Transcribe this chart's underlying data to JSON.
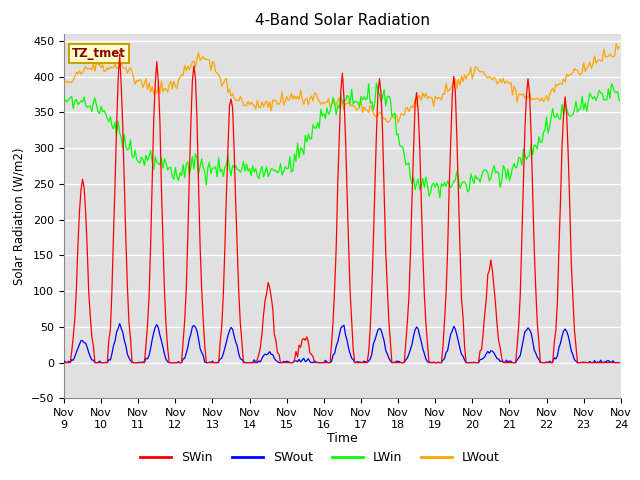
{
  "title": "4-Band Solar Radiation",
  "ylabel": "Solar Radiation (W/m2)",
  "xlabel": "Time",
  "ylim": [
    -50,
    460
  ],
  "xlim": [
    0,
    360
  ],
  "annotation": "TZ_tmet",
  "background_color": "#e0e0e0",
  "legend": [
    "SWin",
    "SWout",
    "LWin",
    "LWout"
  ],
  "colors": [
    "red",
    "blue",
    "lime",
    "orange"
  ],
  "xtick_labels": [
    "Nov 9",
    "Nov 10",
    "Nov 11",
    "Nov 12",
    "Nov 13",
    "Nov 14",
    "Nov 15",
    "Nov 16",
    "Nov 17",
    "Nov 18",
    "Nov 19",
    "Nov 20",
    "Nov 21",
    "Nov 22",
    "Nov 23",
    "Nov 24"
  ],
  "ytick_positions": [
    -50,
    0,
    50,
    100,
    150,
    200,
    250,
    300,
    350,
    400,
    450
  ],
  "xtick_positions": [
    0,
    24,
    48,
    72,
    96,
    120,
    144,
    168,
    192,
    216,
    240,
    264,
    288,
    312,
    336,
    360
  ]
}
